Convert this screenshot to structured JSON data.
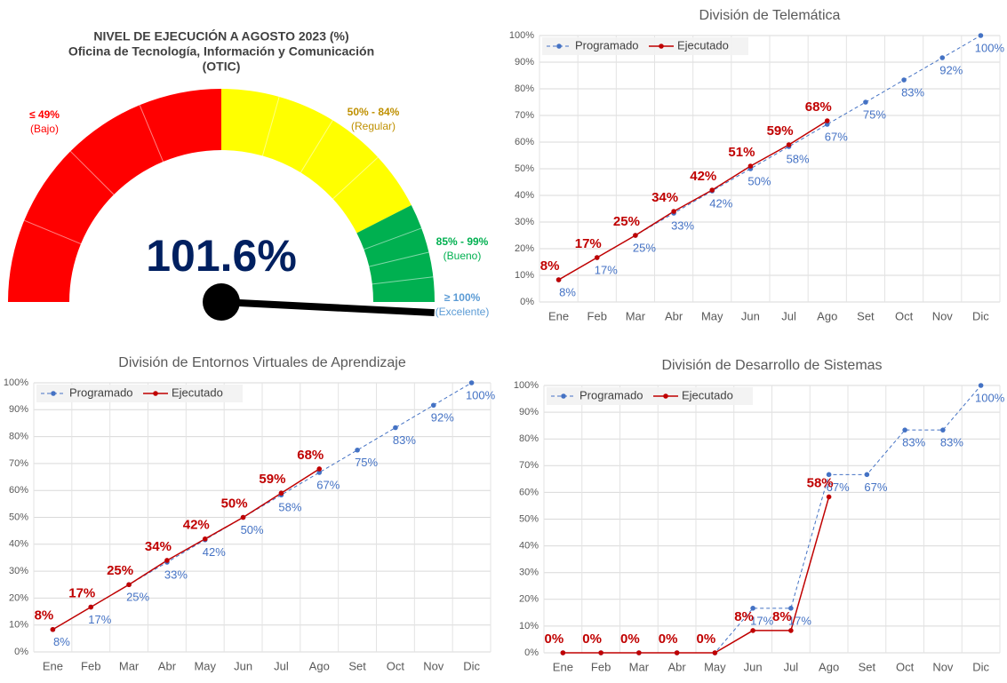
{
  "chart_data": [
    {
      "type": "gauge",
      "title": [
        "NIVEL DE EJECUCIÓN A AGOSTO 2023 (%)",
        "Oficina de Tecnología, Información y Comunicación",
        "(OTIC)"
      ],
      "value": 101.6,
      "value_label": "101.6%",
      "range": [
        0,
        100
      ],
      "bands": [
        {
          "label": "≤ 49%",
          "name": "(Bajo)",
          "color": "#ff0000",
          "from": 0,
          "to": 50
        },
        {
          "label": "50% - 84%",
          "name": "(Regular)",
          "color": "#ffff00",
          "text_color": "#bf9000",
          "from": 50,
          "to": 85
        },
        {
          "label": "85% - 99%",
          "name": "(Bueno)",
          "color": "#00b050",
          "from": 85,
          "to": 100
        },
        {
          "label": "≥ 100%",
          "name": "(Excelente)",
          "color": "#5b9bd5"
        }
      ]
    },
    {
      "type": "line",
      "title": "División de Telemática",
      "categories": [
        "Ene",
        "Feb",
        "Mar",
        "Abr",
        "May",
        "Jun",
        "Jul",
        "Ago",
        "Set",
        "Oct",
        "Nov",
        "Dic"
      ],
      "series": [
        {
          "name": "Programado",
          "color": "#4472c4",
          "dash": true,
          "values": [
            8.33,
            16.67,
            25,
            33.33,
            41.67,
            50,
            58.33,
            66.67,
            75,
            83.33,
            91.67,
            100
          ],
          "value_labels": [
            "8%",
            "17%",
            "25%",
            "33%",
            "42%",
            "50%",
            "58%",
            "67%",
            "75%",
            "83%",
            "92%",
            "100%"
          ]
        },
        {
          "name": "Ejecutado",
          "color": "#c00000",
          "values": [
            8.33,
            16.67,
            25,
            34,
            42,
            51,
            59,
            68,
            null,
            null,
            null,
            null
          ],
          "value_labels": [
            "8%",
            "17%",
            "25%",
            "34%",
            "42%",
            "51%",
            "59%",
            "68%",
            null,
            null,
            null,
            null
          ]
        }
      ],
      "ylim": [
        0,
        100
      ],
      "yticks": [
        {
          "value": 0,
          "label": "0%"
        },
        {
          "value": 10,
          "label": "10%"
        },
        {
          "value": 20,
          "label": "20%"
        },
        {
          "value": 30,
          "label": "30%"
        },
        {
          "value": 40,
          "label": "40%"
        },
        {
          "value": 50,
          "label": "50%"
        },
        {
          "value": 60,
          "label": "60%"
        },
        {
          "value": 70,
          "label": "70%"
        },
        {
          "value": 80,
          "label": "80%"
        },
        {
          "value": 90,
          "label": "90%"
        },
        {
          "value": 100,
          "label": "100%"
        }
      ],
      "grid": true
    },
    {
      "type": "line",
      "title": "División de Entornos Virtuales de Aprendizaje",
      "categories": [
        "Ene",
        "Feb",
        "Mar",
        "Abr",
        "May",
        "Jun",
        "Jul",
        "Ago",
        "Set",
        "Oct",
        "Nov",
        "Dic"
      ],
      "series": [
        {
          "name": "Programado",
          "color": "#4472c4",
          "dash": true,
          "values": [
            8.33,
            16.67,
            25,
            33.33,
            41.67,
            50,
            58.33,
            66.67,
            75,
            83.33,
            91.67,
            100
          ],
          "value_labels": [
            "8%",
            "17%",
            "25%",
            "33%",
            "42%",
            "50%",
            "58%",
            "67%",
            "75%",
            "83%",
            "92%",
            "100%"
          ]
        },
        {
          "name": "Ejecutado",
          "color": "#c00000",
          "values": [
            8.33,
            16.67,
            25,
            34,
            42,
            50,
            59,
            68,
            null,
            null,
            null,
            null
          ],
          "value_labels": [
            "8%",
            "17%",
            "25%",
            "34%",
            "42%",
            "50%",
            "59%",
            "68%",
            null,
            null,
            null,
            null
          ]
        }
      ],
      "ylim": [
        0,
        100
      ],
      "yticks": [
        {
          "value": 0,
          "label": "0%"
        },
        {
          "value": 10,
          "label": "10%"
        },
        {
          "value": 20,
          "label": "20%"
        },
        {
          "value": 30,
          "label": "30%"
        },
        {
          "value": 40,
          "label": "40%"
        },
        {
          "value": 50,
          "label": "50%"
        },
        {
          "value": 60,
          "label": "60%"
        },
        {
          "value": 70,
          "label": "70%"
        },
        {
          "value": 80,
          "label": "80%"
        },
        {
          "value": 90,
          "label": "90%"
        },
        {
          "value": 100,
          "label": "100%"
        }
      ],
      "grid": true
    },
    {
      "type": "line",
      "title": "División de Desarrollo de Sistemas",
      "categories": [
        "Ene",
        "Feb",
        "Mar",
        "Abr",
        "May",
        "Jun",
        "Jul",
        "Ago",
        "Set",
        "Oct",
        "Nov",
        "Dic"
      ],
      "series": [
        {
          "name": "Programado",
          "color": "#4472c4",
          "dash": true,
          "values": [
            0,
            0,
            0,
            0,
            0,
            16.67,
            16.67,
            66.67,
            66.67,
            83.33,
            83.33,
            100
          ],
          "value_labels": [
            null,
            null,
            null,
            null,
            null,
            "17%",
            "17%",
            "67%",
            "67%",
            "83%",
            "83%",
            "100%"
          ]
        },
        {
          "name": "Ejecutado",
          "color": "#c00000",
          "values": [
            0,
            0,
            0,
            0,
            0,
            8.33,
            8.33,
            58.33,
            null,
            null,
            null,
            null
          ],
          "value_labels": [
            "0%",
            "0%",
            "0%",
            "0%",
            "0%",
            "8%",
            "8%",
            "58%",
            null,
            null,
            null,
            null
          ]
        }
      ],
      "ylim": [
        0,
        100
      ],
      "yticks": [
        {
          "value": 0,
          "label": "0%"
        },
        {
          "value": 10,
          "label": "10%"
        },
        {
          "value": 20,
          "label": "20%"
        },
        {
          "value": 30,
          "label": "30%"
        },
        {
          "value": 40,
          "label": "40%"
        },
        {
          "value": 50,
          "label": "50%"
        },
        {
          "value": 60,
          "label": "60%"
        },
        {
          "value": 70,
          "label": "70%"
        },
        {
          "value": 80,
          "label": "80%"
        },
        {
          "value": 90,
          "label": "90%"
        },
        {
          "value": 100,
          "label": "100%"
        }
      ],
      "grid": true
    }
  ]
}
